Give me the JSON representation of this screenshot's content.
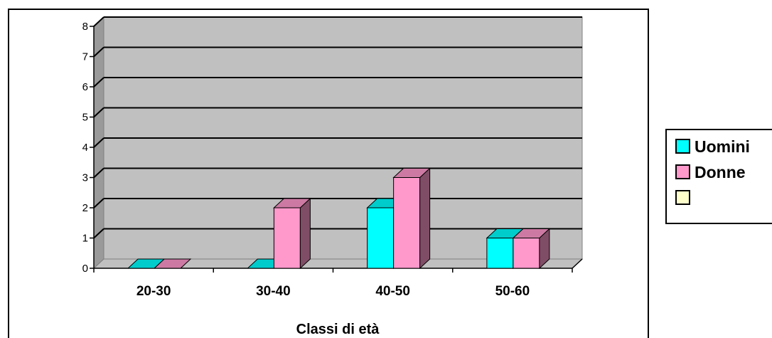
{
  "chart_data": {
    "type": "bar",
    "categories": [
      "20-30",
      "30-40",
      "40-50",
      "50-60"
    ],
    "series": [
      {
        "name": "Uomini",
        "values": [
          0,
          0,
          2,
          1
        ],
        "color": "#00FFFF"
      },
      {
        "name": "Donne",
        "values": [
          0,
          2,
          3,
          1
        ],
        "color": "#FF99CC"
      },
      {
        "name": "",
        "values": [
          0,
          0,
          0,
          0
        ],
        "color": "#FFFFCC"
      }
    ],
    "title": "",
    "xlabel": "Classi di età",
    "ylabel": "",
    "ylim": [
      0,
      8
    ],
    "yticks": [
      0,
      1,
      2,
      3,
      4,
      5,
      6,
      7,
      8
    ],
    "grid": true,
    "three_d": true,
    "legend_position": "right",
    "wall_color": "#C0C0C0"
  }
}
